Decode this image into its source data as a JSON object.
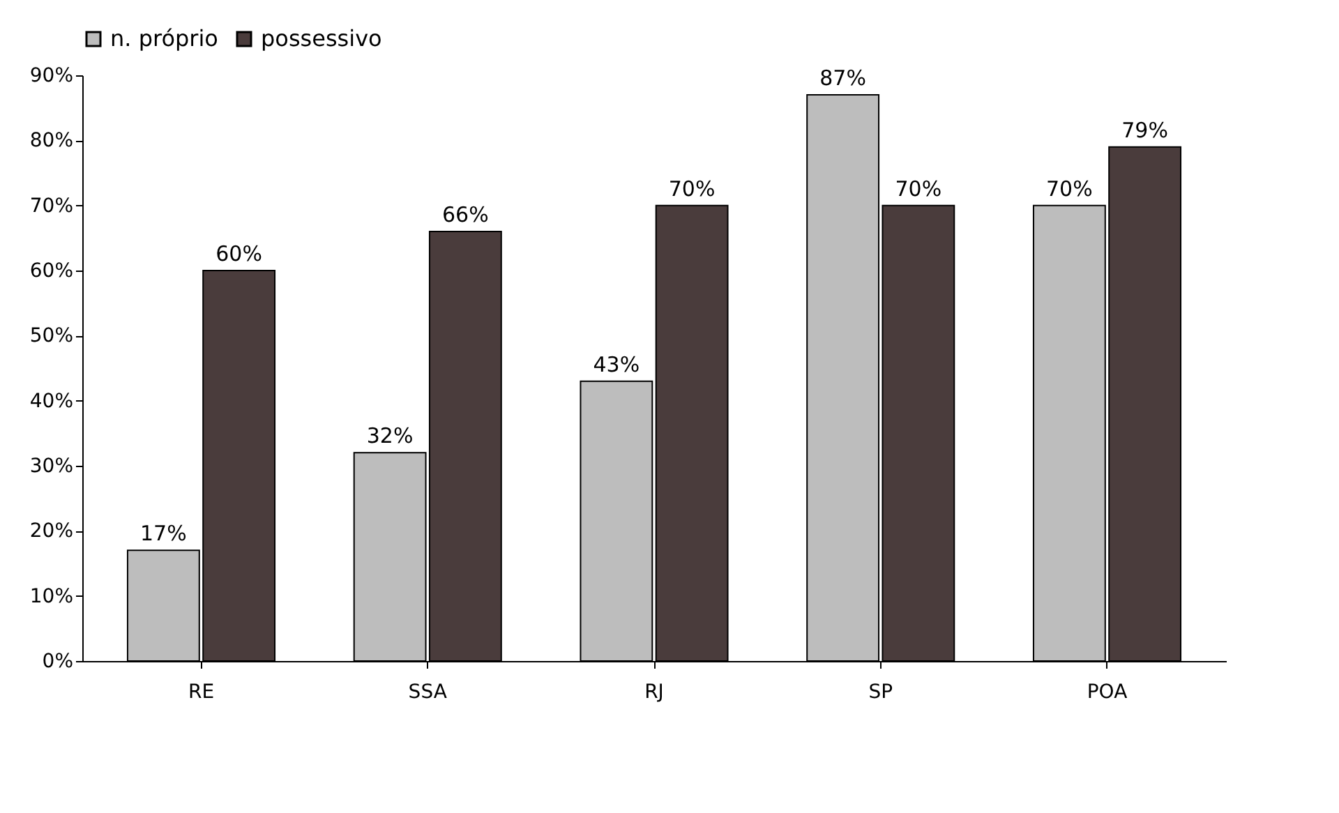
{
  "chart_data": {
    "type": "bar",
    "categories": [
      "RE",
      "SSA",
      "RJ",
      "SP",
      "POA"
    ],
    "series": [
      {
        "name": "n. próprio",
        "color": "#bdbdbd",
        "values": [
          17,
          32,
          43,
          87,
          70
        ],
        "value_labels": [
          "17%",
          "32%",
          "43%",
          "87%",
          "70%"
        ]
      },
      {
        "name": "possessivo",
        "color": "#4a3c3c",
        "values": [
          60,
          66,
          70,
          70,
          79
        ],
        "value_labels": [
          "60%",
          "66%",
          "70%",
          "70%",
          "79%"
        ]
      }
    ],
    "ylim": [
      0,
      90
    ],
    "yticks": [
      {
        "value": 0,
        "label": "0%"
      },
      {
        "value": 10,
        "label": "10%"
      },
      {
        "value": 20,
        "label": "20%"
      },
      {
        "value": 30,
        "label": "30%"
      },
      {
        "value": 40,
        "label": "40%"
      },
      {
        "value": 50,
        "label": "50%"
      },
      {
        "value": 60,
        "label": "60%"
      },
      {
        "value": 70,
        "label": "70%"
      },
      {
        "value": 80,
        "label": "80%"
      },
      {
        "value": 90,
        "label": "90%"
      }
    ],
    "legend": "top",
    "grid": false
  }
}
